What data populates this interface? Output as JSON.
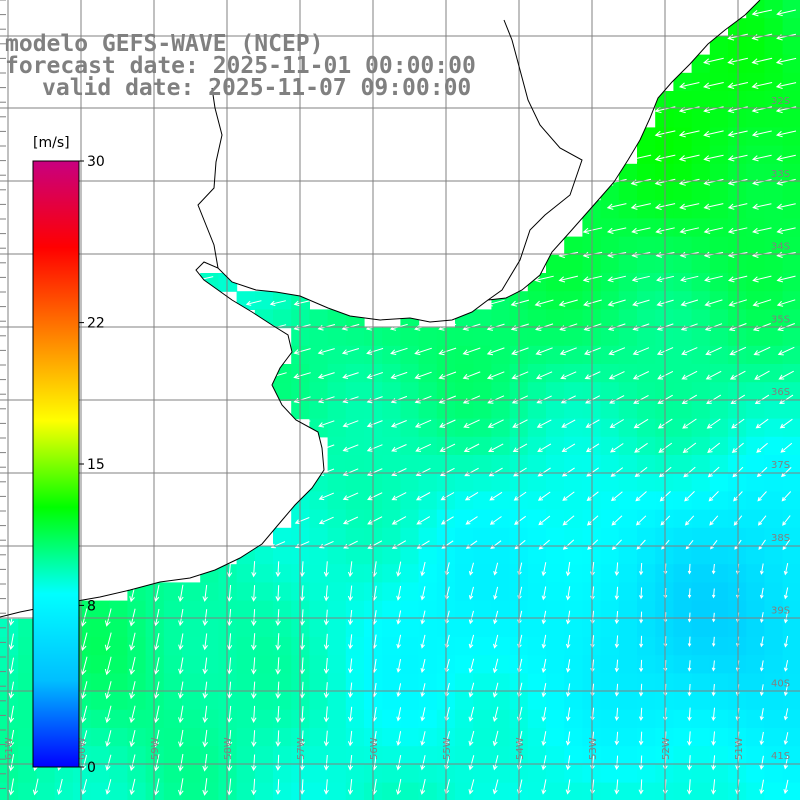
{
  "titles": {
    "line1": "modelo GEFS-WAVE (NCEP)",
    "line2": "forecast date: 2025-11-01 00:00:00",
    "line3": "valid date: 2025-11-07 09:00:00"
  },
  "colorbar": {
    "unit": "[m/s]",
    "ticks": [
      {
        "label": "30",
        "value": 30
      },
      {
        "label": "22",
        "value": 22
      },
      {
        "label": "15",
        "value": 15
      },
      {
        "label": "8",
        "value": 8
      },
      {
        "label": "0",
        "value": 0
      }
    ],
    "stops": [
      "#0000ff",
      "#00bfff",
      "#00ffff",
      "#00ff00",
      "#ffff00",
      "#ff8000",
      "#ff0000",
      "#c80080"
    ]
  },
  "lat_labels": [
    "32S",
    "33S",
    "34S",
    "35S",
    "36S",
    "37S",
    "38S",
    "39S",
    "40S",
    "41S"
  ],
  "lon_labels": [
    "61W",
    "60W",
    "59W",
    "58W",
    "57W",
    "56W",
    "55W",
    "54W",
    "53W",
    "52W",
    "51W"
  ],
  "colors": {
    "land": "#ffffff",
    "coast": "#000000",
    "grid": "#808080",
    "arrow": "#ffffff"
  }
}
